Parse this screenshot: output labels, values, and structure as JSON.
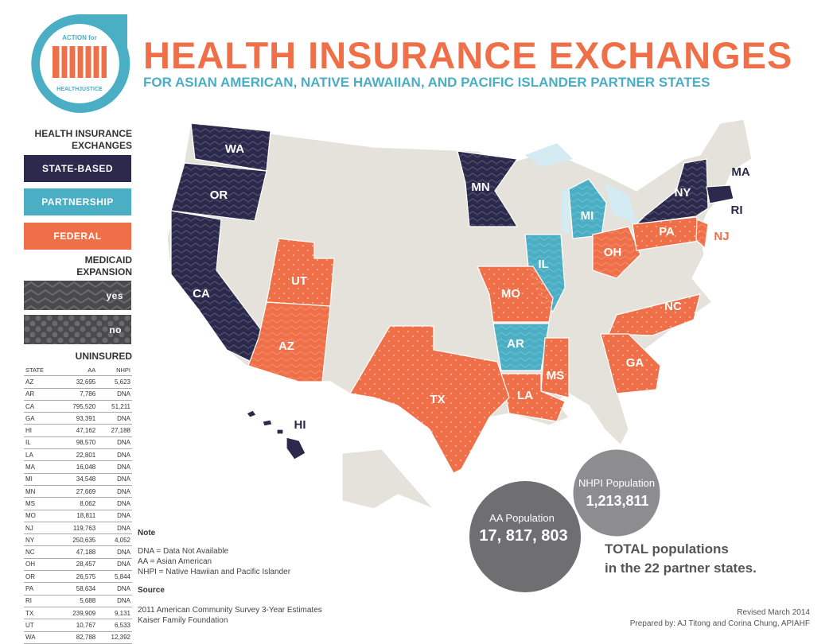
{
  "logo": {
    "top": "ACTION for",
    "bottom": "HEALTHJUSTICE"
  },
  "header": {
    "title": "HEALTH INSURANCE EXCHANGES",
    "subtitle": "FOR ASIAN AMERICAN, NATIVE HAWAIIAN, AND PACIFIC ISLANDER PARTNER STATES"
  },
  "legend": {
    "exchanges_title": "HEALTH INSURANCE EXCHANGES",
    "exchanges": [
      "STATE-BASED",
      "PARTNERSHIP",
      "FEDERAL"
    ],
    "medicaid_title": "MEDICAID EXPANSION",
    "medicaid": [
      "yes",
      "no"
    ]
  },
  "table": {
    "title": "UNINSURED",
    "columns": [
      "STATE",
      "AA",
      "NHPI"
    ],
    "rows": [
      [
        "AZ",
        "32,695",
        "5,623"
      ],
      [
        "AR",
        "7,786",
        "DNA"
      ],
      [
        "CA",
        "795,520",
        "51,211"
      ],
      [
        "GA",
        "93,391",
        "DNA"
      ],
      [
        "HI",
        "47,162",
        "27,188"
      ],
      [
        "IL",
        "98,570",
        "DNA"
      ],
      [
        "LA",
        "22,801",
        "DNA"
      ],
      [
        "MA",
        "16,048",
        "DNA"
      ],
      [
        "MI",
        "34,548",
        "DNA"
      ],
      [
        "MN",
        "27,669",
        "DNA"
      ],
      [
        "MS",
        "8,062",
        "DNA"
      ],
      [
        "MO",
        "18,811",
        "DNA"
      ],
      [
        "NJ",
        "119,763",
        "DNA"
      ],
      [
        "NY",
        "250,635",
        "4,052"
      ],
      [
        "NC",
        "47,188",
        "DNA"
      ],
      [
        "OH",
        "28,457",
        "DNA"
      ],
      [
        "OR",
        "26,575",
        "5,844"
      ],
      [
        "PA",
        "58,634",
        "DNA"
      ],
      [
        "RI",
        "5,688",
        "DNA"
      ],
      [
        "TX",
        "239,909",
        "9,131"
      ],
      [
        "UT",
        "10,767",
        "6,533"
      ],
      [
        "WA",
        "82,788",
        "12,392"
      ]
    ]
  },
  "map": {
    "labels": [
      "WA",
      "OR",
      "CA",
      "UT",
      "AZ",
      "MN",
      "MI",
      "IL",
      "OH",
      "PA",
      "NY",
      "MA",
      "RI",
      "NJ",
      "MO",
      "AR",
      "NC",
      "GA",
      "MS",
      "LA",
      "TX",
      "HI"
    ]
  },
  "populations": {
    "aa_label": "AA Population",
    "aa_value": "17, 817, 803",
    "nhpi_label": "NHPI Population",
    "nhpi_value": "1,213,811",
    "total_line1": "TOTAL populations",
    "total_line2": "in the 22 partner states."
  },
  "notes": {
    "heading": "Note",
    "lines": [
      "DNA = Data Not Available",
      "AA = Asian American",
      "NHPI = Native Hawiian and Pacific Islander"
    ]
  },
  "source": {
    "heading": "Source",
    "lines": [
      "2011 American Community Survey 3-Year Estimates",
      "Kaiser Family Foundation"
    ]
  },
  "footer": {
    "revised": "Revised March 2014",
    "prepared_by": "Prepared by: AJ Titong and Corina Chung, APIAHF"
  }
}
